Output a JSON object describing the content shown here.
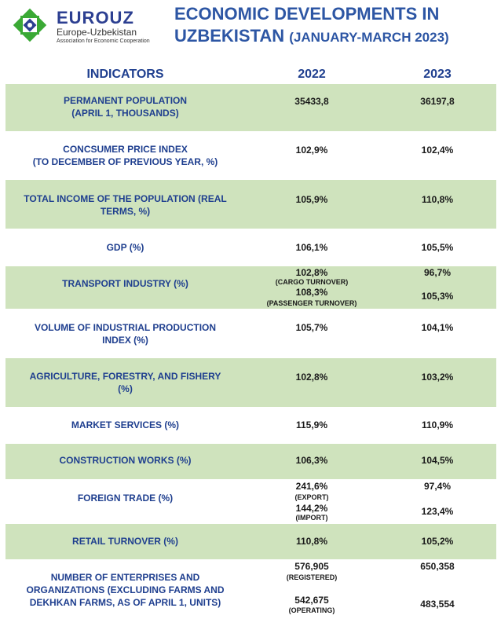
{
  "logo": {
    "name": "EUROUZ",
    "subtitle": "Europe-Uzbekistan",
    "tagline": "Association for Economic Cooperation",
    "colors": {
      "green": "#3aa935",
      "blue": "#2c3f91"
    }
  },
  "title": {
    "line1": "ECONOMIC DEVELOPMENTS IN",
    "line2": "UZBEKISTAN",
    "period": "(JANUARY-MARCH 2023)"
  },
  "headers": {
    "indicators": "INDICATORS",
    "y2022": "2022",
    "y2023": "2023"
  },
  "colors": {
    "row_green": "#cfe3bd",
    "header_blue": "#1f3f8f",
    "title_blue": "#2d56a4"
  },
  "rows": [
    {
      "indicator_l1": "PERMANENT POPULATION",
      "indicator_l2": "(APRIL 1, THOUSANDS)",
      "v2022": "35433,8",
      "v2023": "36197,8"
    },
    {
      "indicator_l1": "CONCSUMER PRICE INDEX",
      "indicator_l2": "(TO DECEMBER OF PREVIOUS YEAR, %)",
      "v2022": "102,9%",
      "v2023": "102,4%"
    },
    {
      "indicator_l1": "TOTAL INCOME OF THE POPULATION (REAL",
      "indicator_l2": "TERMS, %)",
      "v2022": "105,9%",
      "v2023": "110,8%"
    },
    {
      "indicator_l1": "GDP (%)",
      "v2022": "106,1%",
      "v2023": "105,5%"
    },
    {
      "indicator_l1": "TRANSPORT INDUSTRY (%)",
      "v2022_a": "102,8%",
      "note_a": "(CARGO TURNOVER)",
      "v2022_b": "108,3%",
      "note_b": "(PASSENGER TURNOVER)",
      "v2023_a": "96,7%",
      "v2023_b": "105,3%"
    },
    {
      "indicator_l1": "VOLUME OF INDUSTRIAL PRODUCTION",
      "indicator_l2": "INDEX (%)",
      "v2022": "105,7%",
      "v2023": "104,1%"
    },
    {
      "indicator_l1": "AGRICULTURE, FORESTRY, AND FISHERY",
      "indicator_l2": "(%)",
      "v2022": "102,8%",
      "v2023": "103,2%"
    },
    {
      "indicator_l1": "MARKET SERVICES (%)",
      "v2022": "115,9%",
      "v2023": "110,9%"
    },
    {
      "indicator_l1": "CONSTRUCTION WORKS (%)",
      "v2022": "106,3%",
      "v2023": "104,5%"
    },
    {
      "indicator_l1": "FOREIGN TRADE (%)",
      "v2022_a": "241,6%",
      "note_a": "(EXPORT)",
      "v2022_b": "144,2%",
      "note_b": "(IMPORT)",
      "v2023_a": "97,4%",
      "v2023_b": "123,4%"
    },
    {
      "indicator_l1": "RETAIL TURNOVER (%)",
      "v2022": "110,8%",
      "v2023": "105,2%"
    },
    {
      "indicator_l1": "NUMBER OF ENTERPRISES AND",
      "indicator_l2": "ORGANIZATIONS (EXCLUDING FARMS AND",
      "indicator_l3": "DEKHKAN FARMS, AS OF APRIL 1, UNITS)",
      "v2022_a": "576,905",
      "note_a": "(REGISTERED)",
      "v2022_b": "542,675",
      "note_b": "(OPERATING)",
      "v2023_a": "650,358",
      "v2023_b": "483,554"
    }
  ]
}
